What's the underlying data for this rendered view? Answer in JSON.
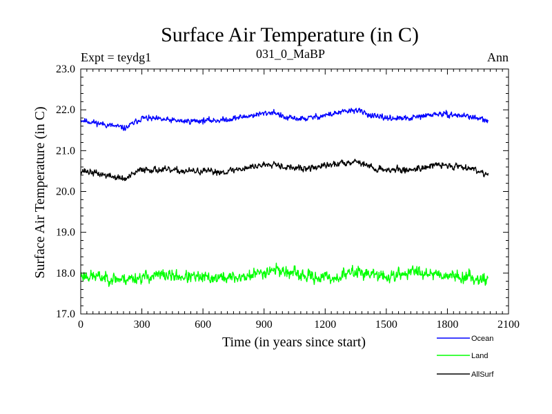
{
  "chart_data": {
    "type": "line",
    "title": "Surface Air Temperature (in C)",
    "subtitle_left": "Expt = teydg1",
    "subtitle_center": "031_0_MaBP",
    "subtitle_right": "Ann",
    "xlabel": "Time (in years since start)",
    "ylabel": "Surface Air Temperature (in C)",
    "xlim": [
      0,
      2100
    ],
    "ylim": [
      17.0,
      23.0
    ],
    "x_ticks": [
      0,
      300,
      600,
      900,
      1200,
      1500,
      1800,
      2100
    ],
    "x_tick_labels": [
      "0",
      "300",
      "600",
      "900",
      "1200",
      "1500",
      "1800",
      "2100"
    ],
    "y_ticks": [
      17.0,
      18.0,
      19.0,
      20.0,
      21.0,
      22.0,
      23.0
    ],
    "y_tick_labels": [
      "17.0",
      "18.0",
      "19.0",
      "20.0",
      "21.0",
      "22.0",
      "23.0"
    ],
    "x_start": 0,
    "x_end": 2000,
    "series": [
      {
        "name": "Ocean",
        "color": "#0000ff",
        "mean": 21.78,
        "noise": 0.07,
        "seed": 11,
        "anchors": [
          [
            0,
            21.75
          ],
          [
            220,
            21.55
          ],
          [
            300,
            21.8
          ],
          [
            500,
            21.72
          ],
          [
            700,
            21.75
          ],
          [
            950,
            21.95
          ],
          [
            1000,
            21.8
          ],
          [
            1100,
            21.78
          ],
          [
            1350,
            22.0
          ],
          [
            1450,
            21.82
          ],
          [
            1600,
            21.78
          ],
          [
            1750,
            21.9
          ],
          [
            1900,
            21.85
          ],
          [
            2000,
            21.72
          ]
        ]
      },
      {
        "name": "Land",
        "color": "#00ff00",
        "mean": 17.9,
        "noise": 0.15,
        "seed": 23,
        "anchors": [
          [
            0,
            17.95
          ],
          [
            200,
            17.85
          ],
          [
            400,
            17.95
          ],
          [
            600,
            17.88
          ],
          [
            800,
            17.9
          ],
          [
            950,
            18.1
          ],
          [
            1100,
            17.92
          ],
          [
            1250,
            17.88
          ],
          [
            1350,
            18.05
          ],
          [
            1500,
            17.9
          ],
          [
            1650,
            18.05
          ],
          [
            1800,
            17.95
          ],
          [
            2000,
            17.85
          ]
        ]
      },
      {
        "name": "AllSurf",
        "color": "#000000",
        "mean": 20.52,
        "noise": 0.08,
        "seed": 37,
        "anchors": [
          [
            0,
            20.52
          ],
          [
            220,
            20.3
          ],
          [
            300,
            20.55
          ],
          [
            500,
            20.5
          ],
          [
            700,
            20.48
          ],
          [
            950,
            20.7
          ],
          [
            1000,
            20.6
          ],
          [
            1100,
            20.55
          ],
          [
            1350,
            20.75
          ],
          [
            1450,
            20.55
          ],
          [
            1600,
            20.52
          ],
          [
            1750,
            20.65
          ],
          [
            1900,
            20.6
          ],
          [
            2000,
            20.42
          ]
        ]
      }
    ]
  }
}
